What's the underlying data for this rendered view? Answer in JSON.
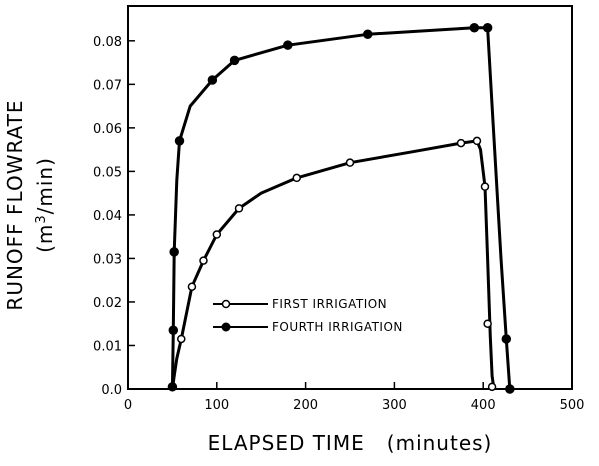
{
  "chart_data": {
    "type": "line",
    "xlabel": "ELAPSED TIME   (minutes)",
    "ylabel_line1": "RUNOFF FLOWRATE",
    "ylabel_line2": "(m3/min)",
    "xlim": [
      0,
      500
    ],
    "ylim": [
      0,
      0.088
    ],
    "xticks": [
      0,
      100,
      200,
      300,
      400,
      500
    ],
    "xtick_labels": [
      "0",
      "100",
      "200",
      "300",
      "400",
      "500"
    ],
    "yticks": [
      0,
      0.01,
      0.02,
      0.03,
      0.04,
      0.05,
      0.06,
      0.07,
      0.08
    ],
    "ytick_labels": [
      "0.0",
      "0.01",
      "0.02",
      "0.03",
      "0.04",
      "0.05",
      "0.06",
      "0.07",
      "0.08"
    ],
    "grid": false,
    "legend_position": "lower-center",
    "series": [
      {
        "name": "FIRST IRRIGATION",
        "marker": "open-circle",
        "x": [
          60,
          72,
          85,
          100,
          125,
          190,
          250,
          375,
          393,
          402,
          405,
          410
        ],
        "y": [
          0.0115,
          0.0235,
          0.0295,
          0.0355,
          0.0415,
          0.0485,
          0.052,
          0.0565,
          0.057,
          0.0465,
          0.015,
          0.0005
        ],
        "curve_x": [
          50,
          52,
          55,
          60,
          72,
          85,
          100,
          125,
          150,
          190,
          250,
          320,
          375,
          393,
          397,
          402,
          405,
          408,
          410,
          412
        ],
        "curve_y": [
          0.0,
          0.003,
          0.007,
          0.0115,
          0.0235,
          0.0295,
          0.0355,
          0.0415,
          0.045,
          0.0485,
          0.052,
          0.0545,
          0.0565,
          0.057,
          0.055,
          0.0465,
          0.03,
          0.012,
          0.003,
          0.0
        ]
      },
      {
        "name": "FOURTH IRRIGATION",
        "marker": "filled-circle",
        "x": [
          50,
          51,
          52,
          58,
          95,
          120,
          180,
          270,
          390,
          405,
          426,
          430
        ],
        "y": [
          0.0005,
          0.0135,
          0.0315,
          0.057,
          0.071,
          0.0755,
          0.079,
          0.0815,
          0.083,
          0.083,
          0.0115,
          0.0
        ],
        "curve_x": [
          50,
          50.5,
          51,
          52,
          55,
          58,
          70,
          95,
          120,
          180,
          270,
          390,
          405,
          410,
          420,
          426,
          430
        ],
        "curve_y": [
          0.0,
          0.006,
          0.0135,
          0.0315,
          0.048,
          0.057,
          0.065,
          0.071,
          0.0755,
          0.079,
          0.0815,
          0.083,
          0.083,
          0.065,
          0.03,
          0.0115,
          0.0
        ]
      }
    ]
  }
}
